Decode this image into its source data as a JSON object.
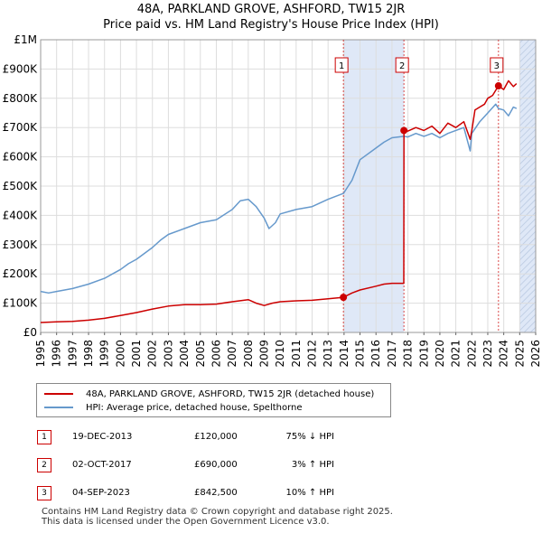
{
  "title_line1": "48A, PARKLAND GROVE, ASHFORD, TW15 2JR",
  "title_line2": "Price paid vs. HM Land Registry's House Price Index (HPI)",
  "legend": {
    "property": "48A, PARKLAND GROVE, ASHFORD, TW15 2JR (detached house)",
    "hpi": "HPI: Average price, detached house, Spelthorne"
  },
  "colors": {
    "property": "#cc0000",
    "hpi": "#6699cc",
    "shade": "#dfe8f7",
    "grid": "#dddddd"
  },
  "sales": [
    {
      "num": "1",
      "date": "19-DEC-2013",
      "price": "£120,000",
      "hpi": "75% ↓ HPI"
    },
    {
      "num": "2",
      "date": "02-OCT-2017",
      "price": "£690,000",
      "hpi": "3% ↑ HPI"
    },
    {
      "num": "3",
      "date": "04-SEP-2023",
      "price": "£842,500",
      "hpi": "10% ↑ HPI"
    }
  ],
  "footer_line1": "Contains HM Land Registry data © Crown copyright and database right 2025.",
  "footer_line2": "This data is licensed under the Open Government Licence v3.0.",
  "chart_data": {
    "type": "line",
    "title": "48A, PARKLAND GROVE, ASHFORD, TW15 2JR",
    "xlabel": "",
    "ylabel": "",
    "xlim": [
      1995,
      2026
    ],
    "ylim": [
      0,
      1000000
    ],
    "x_ticks": [
      "1995",
      "1996",
      "1997",
      "1998",
      "1999",
      "2000",
      "2001",
      "2002",
      "2003",
      "2004",
      "2005",
      "2006",
      "2007",
      "2008",
      "2009",
      "2010",
      "2011",
      "2012",
      "2013",
      "2014",
      "2015",
      "2016",
      "2017",
      "2018",
      "2019",
      "2020",
      "2021",
      "2022",
      "2023",
      "2024",
      "2025",
      "2026"
    ],
    "y_ticks": [
      {
        "value": 0,
        "label": "£0"
      },
      {
        "value": 100000,
        "label": "£100K"
      },
      {
        "value": 200000,
        "label": "£200K"
      },
      {
        "value": 300000,
        "label": "£300K"
      },
      {
        "value": 400000,
        "label": "£400K"
      },
      {
        "value": 500000,
        "label": "£500K"
      },
      {
        "value": 600000,
        "label": "£600K"
      },
      {
        "value": 700000,
        "label": "£700K"
      },
      {
        "value": 800000,
        "label": "£800K"
      },
      {
        "value": 900000,
        "label": "£900K"
      },
      {
        "value": 1000000,
        "label": "£1M"
      }
    ],
    "shaded_ranges": [
      [
        2013.96,
        2017.75
      ]
    ],
    "hatched_range": [
      2025.0,
      2026.0
    ],
    "sale_markers": [
      {
        "label": "1",
        "x": 2013.96,
        "y": 120000
      },
      {
        "label": "2",
        "x": 2017.75,
        "y": 690000
      },
      {
        "label": "3",
        "x": 2023.67,
        "y": 842500
      }
    ],
    "series": [
      {
        "name": "48A, PARKLAND GROVE, ASHFORD, TW15 2JR (detached house)",
        "x": [
          1995,
          1996,
          1997,
          1998,
          1999,
          2000,
          2001,
          2002,
          2003,
          2004,
          2005,
          2006,
          2007,
          2008,
          2008.5,
          2009,
          2009.5,
          2010,
          2011,
          2012,
          2013,
          2013.96,
          2014.5,
          2015,
          2016,
          2016.5,
          2017,
          2017.74,
          2017.75,
          2018,
          2018.5,
          2019,
          2019.5,
          2020,
          2020.5,
          2021,
          2021.5,
          2021.9,
          2022,
          2022.2,
          2022.5,
          2022.8,
          2023,
          2023.3,
          2023.67,
          2024,
          2024.3,
          2024.6,
          2024.8
        ],
        "values": [
          34000,
          36000,
          38000,
          42000,
          48000,
          58000,
          68000,
          80000,
          90000,
          95000,
          95000,
          97000,
          105000,
          112000,
          100000,
          92000,
          100000,
          105000,
          108000,
          110000,
          115000,
          120000,
          135000,
          145000,
          158000,
          165000,
          168000,
          168000,
          690000,
          688000,
          700000,
          690000,
          705000,
          680000,
          715000,
          700000,
          720000,
          660000,
          690000,
          760000,
          770000,
          780000,
          800000,
          810000,
          842500,
          830000,
          860000,
          840000,
          850000
        ]
      },
      {
        "name": "HPI: Average price, detached house, Spelthorne",
        "x": [
          1995,
          1995.5,
          1996,
          1997,
          1998,
          1999,
          2000,
          2000.5,
          2001,
          2002,
          2002.5,
          2003,
          2004,
          2005,
          2006,
          2007,
          2007.5,
          2008,
          2008.5,
          2009,
          2009.3,
          2009.7,
          2010,
          2011,
          2012,
          2013,
          2013.96,
          2014.5,
          2015,
          2016,
          2016.5,
          2017,
          2017.75,
          2018,
          2018.5,
          2019,
          2019.5,
          2020,
          2020.5,
          2021,
          2021.5,
          2021.9,
          2022,
          2022.5,
          2023,
          2023.5,
          2023.67,
          2024,
          2024.3,
          2024.6,
          2024.8
        ],
        "values": [
          140000,
          135000,
          140000,
          150000,
          165000,
          185000,
          215000,
          235000,
          250000,
          290000,
          315000,
          335000,
          355000,
          375000,
          385000,
          420000,
          450000,
          455000,
          430000,
          390000,
          355000,
          375000,
          405000,
          420000,
          430000,
          455000,
          475000,
          520000,
          590000,
          630000,
          650000,
          665000,
          670000,
          668000,
          680000,
          670000,
          680000,
          665000,
          680000,
          690000,
          700000,
          620000,
          680000,
          720000,
          750000,
          780000,
          765000,
          760000,
          740000,
          770000,
          765000
        ]
      }
    ]
  }
}
